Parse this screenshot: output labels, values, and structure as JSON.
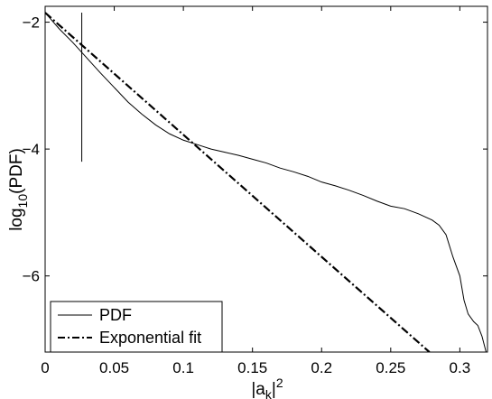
{
  "chart_data": {
    "type": "line",
    "title": "",
    "xlabel_main": "|a",
    "xlabel_sub": "k",
    "xlabel_tail": "|",
    "xlabel_sup": "2",
    "ylabel_main": "log",
    "ylabel_sub": "10",
    "ylabel_tail": "(PDF)",
    "xlim": [
      0,
      0.32
    ],
    "ylim": [
      -7.2,
      -1.75
    ],
    "x_ticks": [
      0,
      0.05,
      0.1,
      0.15,
      0.2,
      0.25,
      0.3
    ],
    "x_tick_labels": [
      "0",
      "0.05",
      "0.1",
      "0.15",
      "0.2",
      "0.25",
      "0.3"
    ],
    "y_ticks": [
      -2,
      -4,
      -6
    ],
    "y_tick_labels": [
      "−2",
      "−4",
      "−6"
    ],
    "grid": false,
    "legend_position": "bottom-left",
    "series": [
      {
        "name": "PDF",
        "style": "solid",
        "x": [
          0,
          0.01,
          0.02,
          0.03,
          0.04,
          0.05,
          0.06,
          0.07,
          0.08,
          0.09,
          0.1,
          0.11,
          0.12,
          0.13,
          0.14,
          0.15,
          0.16,
          0.17,
          0.18,
          0.19,
          0.2,
          0.21,
          0.22,
          0.23,
          0.24,
          0.25,
          0.26,
          0.27,
          0.28,
          0.285,
          0.29,
          0.295,
          0.3,
          0.303,
          0.306,
          0.31,
          0.313,
          0.316,
          0.319
        ],
        "y": [
          -1.85,
          -2.1,
          -2.32,
          -2.56,
          -2.8,
          -3.03,
          -3.26,
          -3.45,
          -3.62,
          -3.76,
          -3.86,
          -3.93,
          -4.0,
          -4.05,
          -4.1,
          -4.16,
          -4.22,
          -4.3,
          -4.36,
          -4.43,
          -4.52,
          -4.58,
          -4.65,
          -4.73,
          -4.82,
          -4.9,
          -4.94,
          -5.02,
          -5.12,
          -5.2,
          -5.35,
          -5.7,
          -6.0,
          -6.38,
          -6.6,
          -6.72,
          -6.78,
          -6.95,
          -7.2
        ]
      },
      {
        "name": "Exponential fit",
        "style": "dashdot",
        "x": [
          0,
          0.278
        ],
        "y": [
          -1.85,
          -7.2
        ]
      }
    ],
    "marker_line": {
      "x": 0.0265,
      "y_from": -1.85,
      "y_to": -4.2
    }
  }
}
